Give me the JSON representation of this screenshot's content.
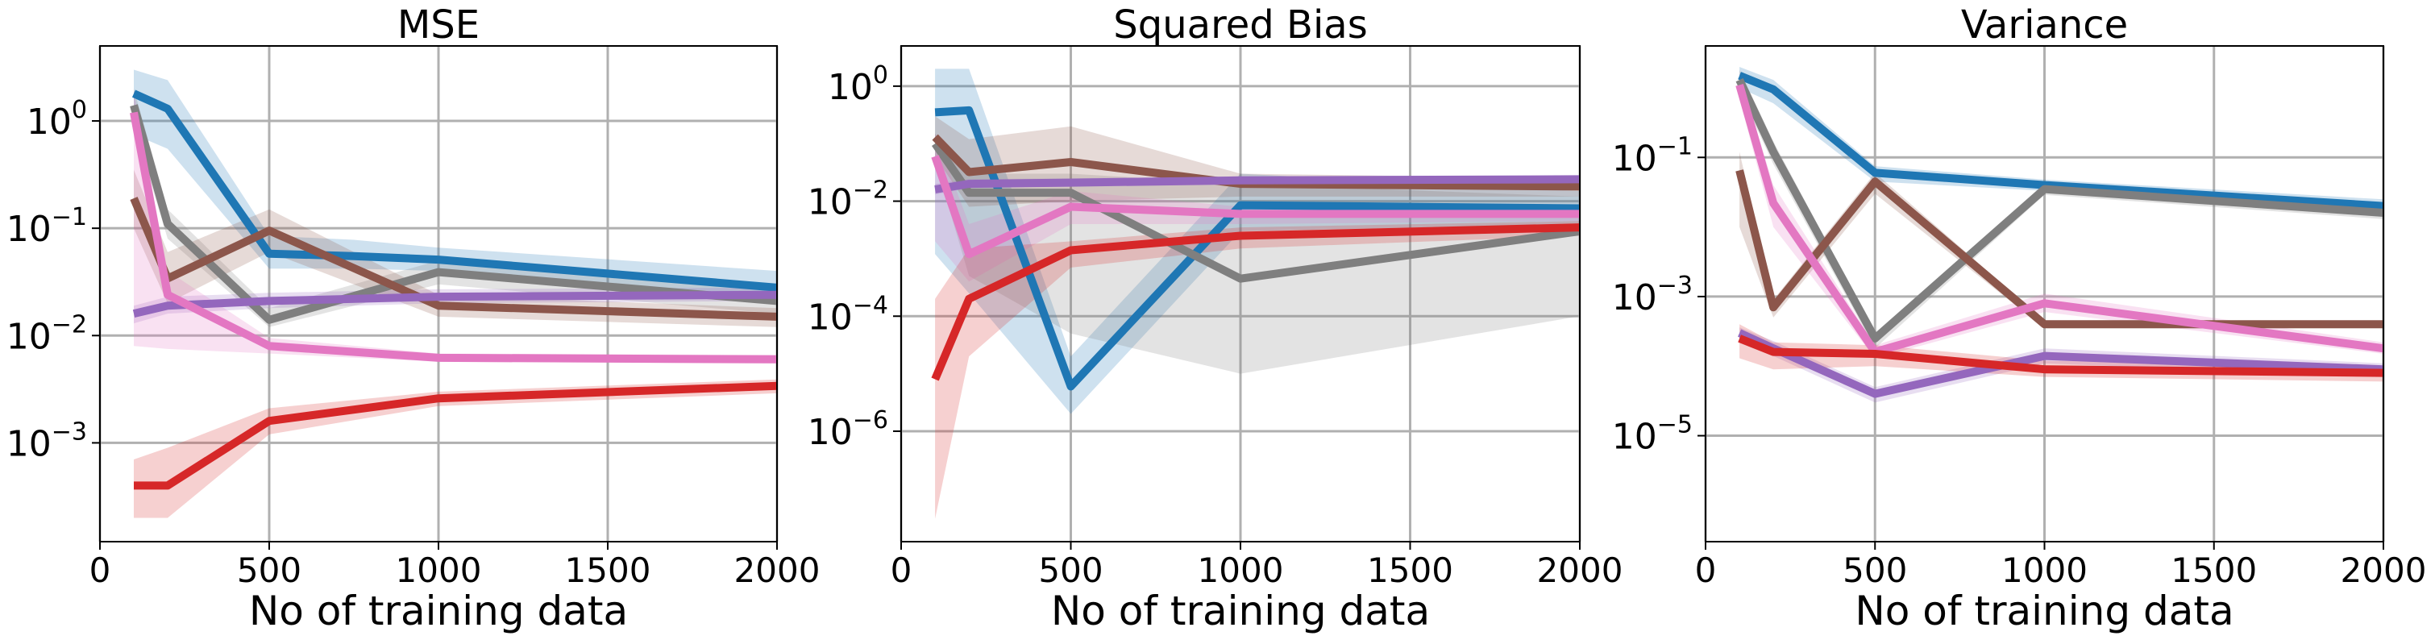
{
  "chart_data": [
    {
      "type": "line",
      "title": "MSE",
      "xlabel": "No of training data",
      "ylabel": "",
      "xlim": [
        0,
        2000
      ],
      "ylim": [
        0.00012,
        5.0
      ],
      "yscale": "log",
      "grid": true,
      "xticks": [
        0,
        500,
        1000,
        1500,
        2000
      ],
      "xtick_labels": [
        "0",
        "500",
        "1000",
        "1500",
        "2000"
      ],
      "yticks": [
        0.001,
        0.01,
        0.1,
        1
      ],
      "ytick_labels": [
        {
          "base": "10",
          "exp": "−3"
        },
        {
          "base": "10",
          "exp": "−2"
        },
        {
          "base": "10",
          "exp": "−1"
        },
        {
          "base": "10",
          "exp": "0"
        }
      ],
      "series": [
        {
          "color": "#1f77b4",
          "x": [
            100,
            200,
            500,
            750,
            1000,
            2000
          ],
          "y": [
            1.8,
            1.3,
            0.058,
            0.055,
            0.051,
            0.028
          ],
          "lower": [
            0.75,
            0.55,
            0.042,
            0.042,
            0.04,
            0.02
          ],
          "upper": [
            3.0,
            2.4,
            0.085,
            0.078,
            0.066,
            0.04
          ]
        },
        {
          "color": "#7f7f7f",
          "x": [
            100,
            200,
            500,
            1000,
            2000
          ],
          "y": [
            1.4,
            0.11,
            0.014,
            0.039,
            0.021
          ],
          "lower": [
            0.9,
            0.08,
            0.012,
            0.03,
            0.016
          ],
          "upper": [
            2.0,
            0.15,
            0.018,
            0.05,
            0.028
          ]
        },
        {
          "color": "#8c564b",
          "x": [
            100,
            200,
            500,
            1000,
            2000
          ],
          "y": [
            0.19,
            0.034,
            0.095,
            0.019,
            0.015
          ],
          "lower": [
            0.1,
            0.02,
            0.06,
            0.015,
            0.012
          ],
          "upper": [
            0.35,
            0.06,
            0.15,
            0.024,
            0.018
          ]
        },
        {
          "color": "#9467bd",
          "x": [
            100,
            200,
            500,
            1000,
            2000
          ],
          "y": [
            0.016,
            0.019,
            0.021,
            0.023,
            0.024
          ],
          "lower": [
            0.013,
            0.016,
            0.018,
            0.02,
            0.021
          ],
          "upper": [
            0.019,
            0.023,
            0.025,
            0.027,
            0.028
          ]
        },
        {
          "color": "#e377c2",
          "x": [
            100,
            200,
            500,
            1000,
            2000
          ],
          "y": [
            1.2,
            0.024,
            0.008,
            0.0062,
            0.006
          ],
          "lower": [
            0.008,
            0.0075,
            0.0068,
            0.0057,
            0.0055
          ],
          "upper": [
            1.9,
            0.04,
            0.0095,
            0.0068,
            0.0066
          ]
        },
        {
          "color": "#d62728",
          "x": [
            100,
            200,
            500,
            1000,
            2000
          ],
          "y": [
            0.0004,
            0.0004,
            0.0016,
            0.0026,
            0.0034
          ],
          "lower": [
            0.0002,
            0.0002,
            0.0012,
            0.0022,
            0.0029
          ],
          "upper": [
            0.0007,
            0.0009,
            0.0021,
            0.003,
            0.0039
          ]
        }
      ]
    },
    {
      "type": "line",
      "title": "Squared Bias",
      "xlabel": "No of training data",
      "ylabel": "",
      "xlim": [
        0,
        2000
      ],
      "ylim": [
        1.2e-08,
        5.0
      ],
      "yscale": "log",
      "grid": true,
      "xticks": [
        0,
        500,
        1000,
        1500,
        2000
      ],
      "xtick_labels": [
        "0",
        "500",
        "1000",
        "1500",
        "2000"
      ],
      "yticks": [
        1e-06,
        0.0001,
        0.01,
        1
      ],
      "ytick_labels": [
        {
          "base": "10",
          "exp": "−6"
        },
        {
          "base": "10",
          "exp": "−4"
        },
        {
          "base": "10",
          "exp": "−2"
        },
        {
          "base": "10",
          "exp": "0"
        }
      ],
      "series": [
        {
          "color": "#1f77b4",
          "x": [
            100,
            200,
            500,
            1000,
            2000
          ],
          "y": [
            0.35,
            0.38,
            6e-06,
            0.0085,
            0.0075
          ],
          "lower": [
            0.0012,
            0.00025,
            2e-06,
            0.003,
            0.004
          ],
          "upper": [
            2.0,
            2.0,
            2e-05,
            0.03,
            0.015
          ]
        },
        {
          "color": "#7f7f7f",
          "x": [
            100,
            200,
            500,
            1000,
            2000
          ],
          "y": [
            0.1,
            0.014,
            0.014,
            0.00045,
            0.003
          ],
          "lower": [
            0.05,
            0.0005,
            5e-05,
            1e-05,
            0.0001
          ],
          "upper": [
            0.15,
            0.03,
            0.03,
            0.02,
            0.012
          ]
        },
        {
          "color": "#8c564b",
          "x": [
            100,
            200,
            500,
            1000,
            2000
          ],
          "y": [
            0.13,
            0.032,
            0.048,
            0.02,
            0.018
          ],
          "lower": [
            0.06,
            0.008,
            0.01,
            0.012,
            0.012
          ],
          "upper": [
            0.3,
            0.12,
            0.2,
            0.03,
            0.025
          ]
        },
        {
          "color": "#9467bd",
          "x": [
            100,
            200,
            500,
            1000,
            2000
          ],
          "y": [
            0.016,
            0.02,
            0.021,
            0.023,
            0.024
          ],
          "lower": [
            0.013,
            0.017,
            0.018,
            0.02,
            0.021
          ],
          "upper": [
            0.02,
            0.024,
            0.025,
            0.027,
            0.028
          ]
        },
        {
          "color": "#e377c2",
          "x": [
            100,
            200,
            500,
            1000,
            2000
          ],
          "y": [
            0.06,
            0.0012,
            0.008,
            0.006,
            0.006
          ],
          "lower": [
            0.002,
            0.0004,
            0.004,
            0.004,
            0.0045
          ],
          "upper": [
            0.15,
            0.004,
            0.015,
            0.008,
            0.008
          ]
        },
        {
          "color": "#d62728",
          "x": [
            100,
            200,
            500,
            1000,
            2000
          ],
          "y": [
            8e-06,
            0.0002,
            0.0014,
            0.0025,
            0.0035
          ],
          "lower": [
            3e-08,
            2e-05,
            0.0007,
            0.0015,
            0.0025
          ],
          "upper": [
            0.0002,
            0.0015,
            0.002,
            0.0035,
            0.0045
          ]
        }
      ]
    },
    {
      "type": "line",
      "title": "Variance",
      "xlabel": "No of training data",
      "ylabel": "",
      "xlim": [
        0,
        2000
      ],
      "ylim": [
        3e-07,
        4.0
      ],
      "yscale": "log",
      "grid": true,
      "xticks": [
        0,
        500,
        1000,
        1500,
        2000
      ],
      "xtick_labels": [
        "0",
        "500",
        "1000",
        "1500",
        "2000"
      ],
      "yticks": [
        1e-05,
        0.001,
        0.1
      ],
      "ytick_labels": [
        {
          "base": "10",
          "exp": "−5"
        },
        {
          "base": "10",
          "exp": "−3"
        },
        {
          "base": "10",
          "exp": "−1"
        }
      ],
      "series": [
        {
          "color": "#1f77b4",
          "x": [
            100,
            200,
            500,
            1000,
            2000
          ],
          "y": [
            1.5,
            0.95,
            0.06,
            0.04,
            0.02
          ],
          "lower": [
            1.0,
            0.6,
            0.045,
            0.033,
            0.016
          ],
          "upper": [
            2.0,
            1.3,
            0.075,
            0.048,
            0.025
          ]
        },
        {
          "color": "#7f7f7f",
          "x": [
            100,
            200,
            500,
            1000,
            2000
          ],
          "y": [
            1.3,
            0.12,
            0.00025,
            0.035,
            0.016
          ],
          "lower": [
            0.9,
            0.08,
            0.00018,
            0.029,
            0.013
          ],
          "upper": [
            1.8,
            0.17,
            0.0003,
            0.042,
            0.02
          ]
        },
        {
          "color": "#8c564b",
          "x": [
            100,
            200,
            500,
            1000,
            2000
          ],
          "y": [
            0.065,
            0.0007,
            0.045,
            0.0004,
            0.0004
          ],
          "lower": [
            0.01,
            0.0005,
            0.03,
            0.00035,
            0.00035
          ],
          "upper": [
            0.12,
            0.0009,
            0.06,
            0.00045,
            0.00045
          ]
        },
        {
          "color": "#9467bd",
          "x": [
            100,
            200,
            500,
            1000,
            2000
          ],
          "y": [
            0.0003,
            0.00018,
            4e-05,
            0.00014,
            9e-05
          ],
          "lower": [
            0.00025,
            0.00014,
            3e-05,
            0.00011,
            7e-05
          ],
          "upper": [
            0.00036,
            0.00023,
            5e-05,
            0.00018,
            0.00011
          ]
        },
        {
          "color": "#e377c2",
          "x": [
            100,
            200,
            500,
            1000,
            2000
          ],
          "y": [
            1.1,
            0.022,
            0.00016,
            0.0008,
            0.00018
          ],
          "lower": [
            0.7,
            0.01,
            0.00013,
            0.0006,
            0.00015
          ],
          "upper": [
            1.6,
            0.04,
            0.0002,
            0.0011,
            0.00022
          ]
        },
        {
          "color": "#d62728",
          "x": [
            100,
            200,
            500,
            1000,
            2000
          ],
          "y": [
            0.00025,
            0.00016,
            0.00015,
            9e-05,
            8e-05
          ],
          "lower": [
            0.00013,
            9e-05,
            0.0001,
            7e-05,
            6e-05
          ],
          "upper": [
            0.0004,
            0.00022,
            0.0002,
            0.00012,
            0.0001
          ]
        }
      ]
    }
  ]
}
